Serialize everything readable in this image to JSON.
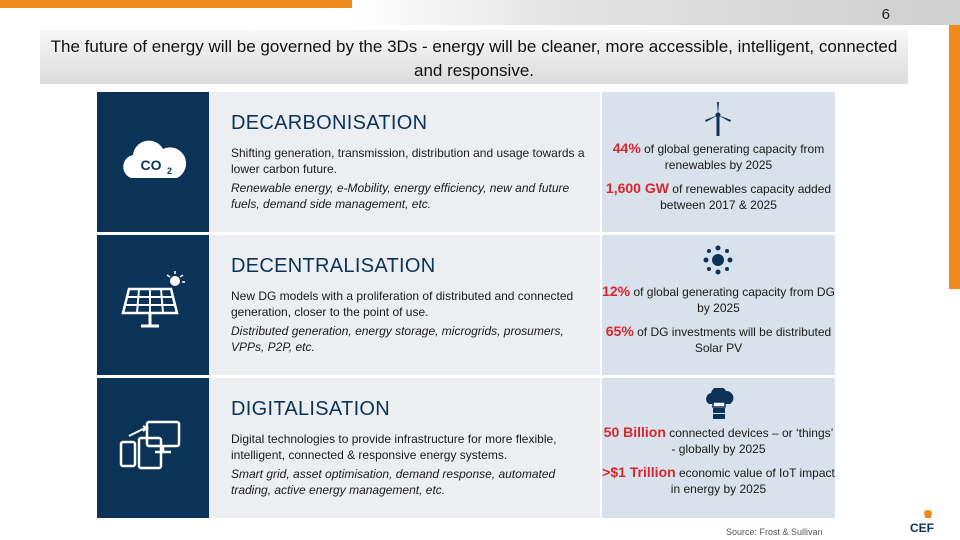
{
  "page_number": "6",
  "title": "The future of energy will be governed by the 3Ds - energy will be cleaner, more accessible, intelligent, connected and responsive.",
  "rows": [
    {
      "icon": "co2-cloud-icon",
      "heading": "DECARBONISATION",
      "text": "Shifting generation, transmission, distribution and usage towards a lower carbon future.",
      "examples": "Renewable energy, e-Mobility, energy efficiency, new and future fuels, demand side management, etc.",
      "stat_icon": "wind-turbine-icon",
      "stats": [
        {
          "highlight": "44%",
          "rest": " of global generating capacity from renewables by 2025"
        },
        {
          "highlight": "1,600 GW",
          "rest": " of renewables capacity added between 2017 & 2025"
        }
      ]
    },
    {
      "icon": "solar-panel-icon",
      "heading": "DECENTRALISATION",
      "text": "New DG models with a proliferation of distributed and connected generation, closer to the point of use.",
      "examples": "Distributed generation, energy storage, microgrids, prosumers, VPPs, P2P, etc.",
      "stat_icon": "sun-network-icon",
      "stats": [
        {
          "highlight": "12%",
          "rest": " of global generating capacity from DG by 2025"
        },
        {
          "highlight": "65%",
          "rest": " of DG investments will be distributed Solar PV"
        }
      ]
    },
    {
      "icon": "connected-devices-icon",
      "heading": "DIGITALISATION",
      "text": "Digital technologies to provide infrastructure for more flexible, intelligent, connected & responsive energy systems.",
      "examples": "Smart grid, asset optimisation, demand response, automated trading, active energy management, etc.",
      "stat_icon": "cloud-server-icon",
      "stats": [
        {
          "highlight": "50 Billion",
          "rest": " connected devices – or ‘things’ - globally by 2025"
        },
        {
          "highlight": ">$1 Trillion",
          "rest": " economic value of IoT impact in energy by 2025"
        }
      ]
    }
  ],
  "source": "Source: Frost & Sullivan",
  "logo_text": "CEF",
  "colors": {
    "navy": "#0b3358",
    "accent_orange": "#ef8a1e",
    "highlight_red": "#d9262b"
  }
}
